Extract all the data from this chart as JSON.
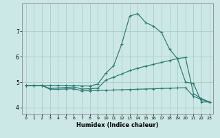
{
  "xlabel": "Humidex (Indice chaleur)",
  "bg_color": "#cce8e6",
  "grid_color": "#aaccca",
  "line_color": "#2e7d74",
  "xlim": [
    -0.5,
    23.5
  ],
  "ylim": [
    3.75,
    8.1
  ],
  "xticks": [
    0,
    1,
    2,
    3,
    4,
    5,
    6,
    7,
    8,
    9,
    10,
    11,
    12,
    13,
    14,
    15,
    16,
    17,
    18,
    19,
    20,
    21,
    22,
    23
  ],
  "yticks": [
    4,
    5,
    6,
    7
  ],
  "line1_x": [
    0,
    1,
    2,
    3,
    4,
    5,
    6,
    7,
    8,
    9,
    10,
    11,
    12,
    13,
    14,
    15,
    16,
    17,
    18,
    19,
    20,
    21,
    22,
    23
  ],
  "line1_y": [
    4.87,
    4.87,
    4.87,
    4.87,
    4.87,
    4.87,
    4.87,
    4.85,
    4.85,
    4.92,
    5.35,
    5.65,
    6.5,
    7.6,
    7.7,
    7.35,
    7.2,
    6.95,
    6.3,
    5.92,
    5.0,
    4.95,
    4.22,
    4.22
  ],
  "line2_x": [
    0,
    1,
    2,
    3,
    4,
    5,
    6,
    7,
    8,
    9,
    10,
    11,
    12,
    13,
    14,
    15,
    16,
    17,
    18,
    19,
    20,
    21,
    22,
    23
  ],
  "line2_y": [
    4.87,
    4.87,
    4.87,
    4.75,
    4.77,
    4.79,
    4.81,
    4.73,
    4.74,
    4.76,
    5.08,
    5.2,
    5.32,
    5.45,
    5.55,
    5.63,
    5.7,
    5.78,
    5.85,
    5.93,
    5.97,
    4.55,
    4.35,
    4.22
  ],
  "line3_x": [
    0,
    1,
    2,
    3,
    4,
    5,
    6,
    7,
    8,
    9,
    10,
    11,
    12,
    13,
    14,
    15,
    16,
    17,
    18,
    19,
    20,
    21,
    22,
    23
  ],
  "line3_y": [
    4.87,
    4.87,
    4.87,
    4.72,
    4.72,
    4.73,
    4.74,
    4.66,
    4.66,
    4.67,
    4.68,
    4.69,
    4.7,
    4.71,
    4.72,
    4.73,
    4.74,
    4.75,
    4.76,
    4.77,
    4.78,
    4.44,
    4.32,
    4.22
  ]
}
